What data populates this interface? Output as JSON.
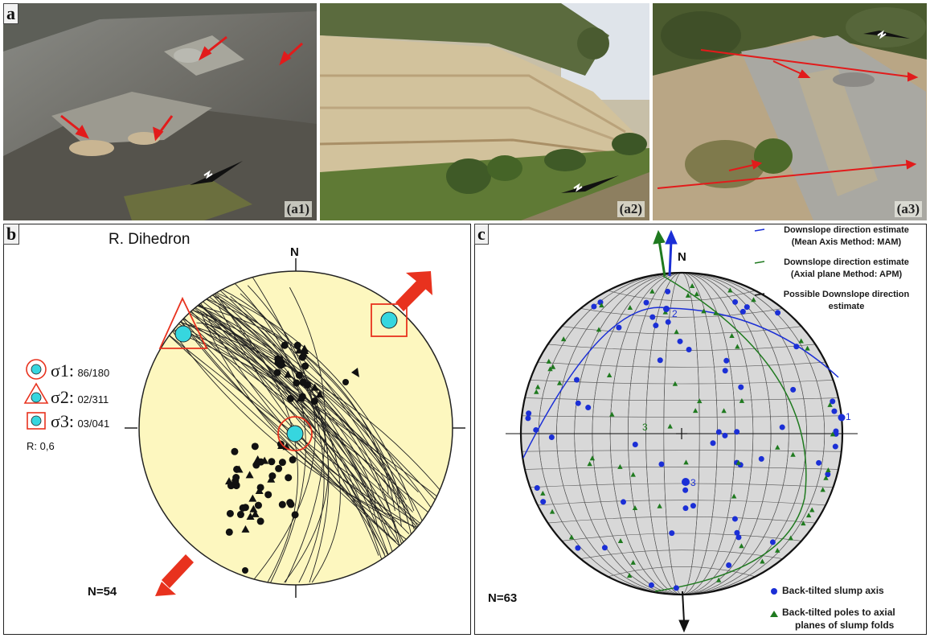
{
  "panel_a": {
    "label": "a",
    "photos": [
      {
        "label": "(a1)"
      },
      {
        "label": "(a2)"
      },
      {
        "label": "(a3)"
      }
    ]
  },
  "panel_b": {
    "label": "b",
    "title": "R. Dihedron",
    "north": "N",
    "sigma1": {
      "symbol": "σ1:",
      "value": "86/180"
    },
    "sigma2": {
      "symbol": "σ2:",
      "value": "02/311"
    },
    "sigma3": {
      "symbol": "σ3:",
      "value": "03/041"
    },
    "ratio": "R: 0,6",
    "count": "N=54",
    "colors": {
      "fill": "#fdf7bf",
      "marker": "#36d6df",
      "stress": "#e8321e"
    }
  },
  "panel_c": {
    "label": "c",
    "north": "N",
    "count": "N=63",
    "legend": {
      "blue_line": [
        "Downslope direction estimate",
        "(Mean Axis Method: MAM)"
      ],
      "green_line": [
        "Downslope direction estimate",
        "(Axial plane Method: APM)"
      ],
      "black_line": [
        "Possible Downslope direction",
        "estimate"
      ],
      "dot": "Back-tilted slump axis",
      "triangle": [
        "Back-tilted poles to axial",
        "planes of slump folds"
      ]
    },
    "point_labels": {
      "p1": "1",
      "p2": "2",
      "p3": "3",
      "g3": "3"
    },
    "colors": {
      "blue": "#1b2fd6",
      "green": "#1f7a1f",
      "net": "#d8d8d8"
    }
  }
}
